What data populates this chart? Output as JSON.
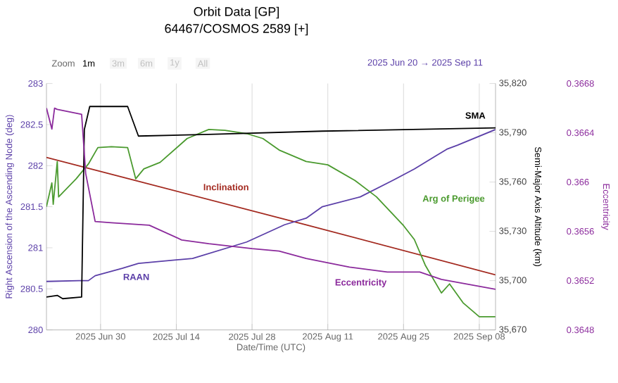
{
  "chart_data": {
    "type": "line",
    "title": "Orbit Data [GP]",
    "subtitle": "64467/COSMOS 2589 [+]",
    "xlabel": "Date/Time (UTC)",
    "ylabel": "Right Ascension of the Ascending Node (deg)",
    "y2label": "Semi-Major Axis Altitude (km)",
    "y3label": "Eccentricity",
    "annotations": [
      "Zoom",
      "1m",
      "3m",
      "6m",
      "1y",
      "All",
      "2025 Jun 20 → 2025 Sep 11"
    ],
    "xlim": [
      "2025-06-20",
      "2025-09-11"
    ],
    "xticks": [
      {
        "value": "2025-06-30",
        "label": "2025 Jun 30"
      },
      {
        "value": "2025-07-14",
        "label": "2025 Jul 14"
      },
      {
        "value": "2025-07-28",
        "label": "2025 Jul 28"
      },
      {
        "value": "2025-08-11",
        "label": "2025 Aug 11"
      },
      {
        "value": "2025-08-25",
        "label": "2025 Aug 25"
      },
      {
        "value": "2025-09-08",
        "label": "2025 Sep 08"
      }
    ],
    "ylim": [
      280,
      283
    ],
    "yticks": [
      280,
      280.5,
      281,
      281.5,
      282,
      282.5,
      283
    ],
    "y2lim": [
      35670,
      35820
    ],
    "y2ticks": [
      {
        "value": 35670,
        "label": "35,670"
      },
      {
        "value": 35700,
        "label": "35,700"
      },
      {
        "value": 35730,
        "label": "35,730"
      },
      {
        "value": 35760,
        "label": "35,760"
      },
      {
        "value": 35790,
        "label": "35,790"
      },
      {
        "value": 35820,
        "label": "35,820"
      }
    ],
    "y3lim": [
      0.3648,
      0.3668
    ],
    "y3ticks": [
      0.3648,
      0.3652,
      0.3656,
      0.366,
      0.3664,
      0.3668
    ],
    "grid": "x",
    "series": [
      {
        "name": "SMA",
        "color": "#000000",
        "axis": "y2",
        "x": [
          "2025-06-20",
          "2025-06-22",
          "2025-06-23",
          "2025-06-26T12:00",
          "2025-06-27",
          "2025-06-28",
          "2025-07-05",
          "2025-07-07",
          "2025-07-20",
          "2025-08-10",
          "2025-09-11"
        ],
        "values": [
          35690,
          35691,
          35689,
          35690,
          35792,
          35806,
          35806,
          35788,
          35789,
          35791,
          35793
        ]
      },
      {
        "name": "Inclination",
        "color": "#a3291f",
        "axis": "y",
        "x": [
          "2025-06-20",
          "2025-08-07",
          "2025-09-11"
        ],
        "values": [
          282.1,
          281.28,
          280.67
        ]
      },
      {
        "name": "RAAN",
        "color": "#5b3fa8",
        "axis": "y",
        "x": [
          "2025-06-20",
          "2025-06-26",
          "2025-06-27T18:00",
          "2025-06-29",
          "2025-07-04",
          "2025-07-07",
          "2025-07-17",
          "2025-07-27",
          "2025-08-03",
          "2025-08-07",
          "2025-08-10",
          "2025-08-17",
          "2025-08-23",
          "2025-08-27",
          "2025-08-31",
          "2025-09-02",
          "2025-09-04",
          "2025-09-11"
        ],
        "values": [
          280.59,
          280.6,
          280.6,
          280.66,
          280.75,
          280.81,
          280.87,
          281.07,
          281.28,
          281.36,
          281.5,
          281.62,
          281.82,
          281.96,
          282.12,
          282.2,
          282.25,
          282.44
        ]
      },
      {
        "name": "Arg of Perigee",
        "color": "#4a9a2e",
        "axis": "y",
        "x": [
          "2025-06-20",
          "2025-06-21",
          "2025-06-21T06:00",
          "2025-06-22",
          "2025-06-22T06:00",
          "2025-06-25T12:00",
          "2025-06-27T18:00",
          "2025-06-29T12:00",
          "2025-07-02",
          "2025-07-05",
          "2025-07-06T12:00",
          "2025-07-08",
          "2025-07-11",
          "2025-07-16",
          "2025-07-20",
          "2025-07-23",
          "2025-07-27",
          "2025-07-30",
          "2025-08-02",
          "2025-08-07",
          "2025-08-11",
          "2025-08-16",
          "2025-08-20",
          "2025-08-25",
          "2025-08-27",
          "2025-08-29",
          "2025-09-01",
          "2025-09-02T12:00",
          "2025-09-05",
          "2025-09-08",
          "2025-09-11"
        ],
        "values": [
          281.5,
          281.79,
          281.53,
          282.05,
          281.62,
          281.84,
          282.02,
          282.22,
          282.23,
          282.22,
          281.84,
          281.96,
          282.04,
          282.33,
          282.44,
          282.43,
          282.39,
          282.33,
          282.19,
          282.05,
          282.01,
          281.82,
          281.62,
          281.27,
          281.1,
          280.79,
          280.45,
          280.56,
          280.33,
          280.16,
          280.16
        ]
      },
      {
        "name": "Eccentricity",
        "color": "#8b2a9c",
        "axis": "y3",
        "x": [
          "2025-06-20",
          "2025-06-21",
          "2025-06-21T12:00",
          "2025-06-22",
          "2025-06-26T12:00",
          "2025-06-27T06:00",
          "2025-06-29",
          "2025-07-02",
          "2025-07-09",
          "2025-07-15",
          "2025-07-20",
          "2025-07-28",
          "2025-08-02",
          "2025-08-07",
          "2025-08-15",
          "2025-08-22",
          "2025-08-28",
          "2025-09-01",
          "2025-09-11"
        ],
        "values": [
          0.3666,
          0.36643,
          0.3666,
          0.36659,
          0.36655,
          0.36607,
          0.36568,
          0.36567,
          0.36565,
          0.36553,
          0.3655,
          0.36546,
          0.36544,
          0.36538,
          0.36531,
          0.36527,
          0.36527,
          0.36521,
          0.36513
        ]
      }
    ]
  }
}
